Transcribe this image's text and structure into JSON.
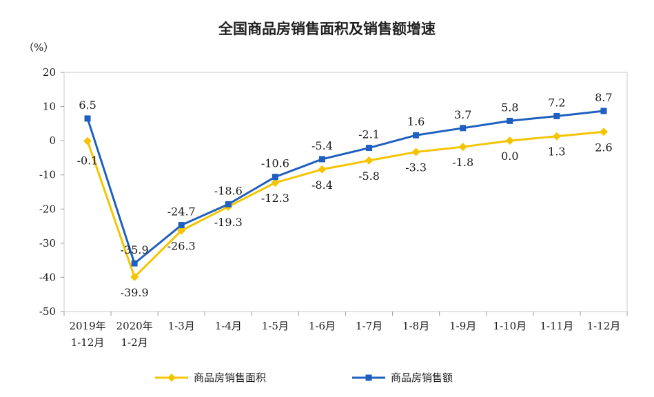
{
  "chart_data": {
    "type": "line",
    "title": "全国商品房销售面积及销售额增速",
    "unit_label": "（%）",
    "ylim": [
      -50,
      20
    ],
    "yticks": [
      20,
      10,
      0,
      -10,
      -20,
      -30,
      -40,
      -50
    ],
    "grid": false,
    "legend_position": "bottom",
    "categories": [
      [
        "2019年",
        "1-12月"
      ],
      [
        "2020年",
        "1-2月"
      ],
      [
        "1-3月"
      ],
      [
        "1-4月"
      ],
      [
        "1-5月"
      ],
      [
        "1-6月"
      ],
      [
        "1-7月"
      ],
      [
        "1-8月"
      ],
      [
        "1-9月"
      ],
      [
        "1-10月"
      ],
      [
        "1-11月"
      ],
      [
        "1-12月"
      ]
    ],
    "series": [
      {
        "name": "商品房销售面积",
        "color": "#f5c400",
        "marker": "diamond",
        "values": [
          -0.1,
          -39.9,
          -26.3,
          -19.3,
          -12.3,
          -8.4,
          -5.8,
          -3.3,
          -1.8,
          0.0,
          1.3,
          2.6
        ],
        "labels": [
          "-0.1",
          "-39.9",
          "-26.3",
          "-19.3",
          "-12.3",
          "-8.4",
          "-5.8",
          "-3.3",
          "-1.8",
          "0.0",
          "1.3",
          "2.6"
        ]
      },
      {
        "name": "商品房销售额",
        "color": "#1f5fbf",
        "marker": "square",
        "values": [
          6.5,
          -35.9,
          -24.7,
          -18.6,
          -10.6,
          -5.4,
          -2.1,
          1.6,
          3.7,
          5.8,
          7.2,
          8.7
        ],
        "labels": [
          "6.5",
          "-35.9",
          "-24.7",
          "-18.6",
          "-10.6",
          "-5.4",
          "-2.1",
          "1.6",
          "3.7",
          "5.8",
          "7.2",
          "8.7"
        ]
      }
    ]
  }
}
